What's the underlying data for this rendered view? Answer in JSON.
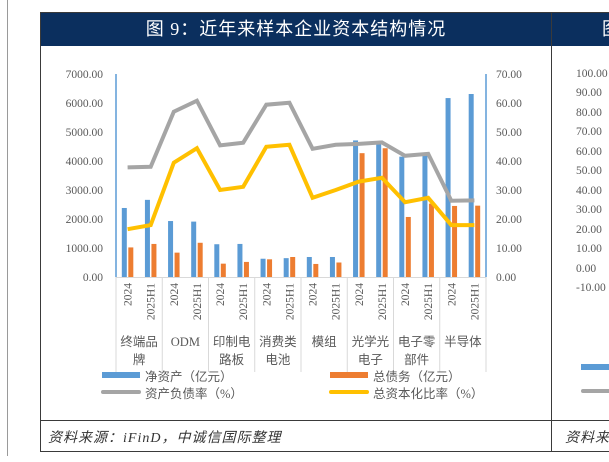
{
  "panels": [
    {
      "title": "图 9：近年来样本企业资本结构情况",
      "source": "资料来源：iFinD，中诚信国际整理",
      "legend": [
        {
          "label": "净资产（亿元）",
          "color": "#5b9bd5",
          "kind": "bar"
        },
        {
          "label": "总债务（亿元）",
          "color": "#ed7d31",
          "kind": "bar"
        },
        {
          "label": "资产负债率（%）",
          "color": "#a5a5a5",
          "kind": "line"
        },
        {
          "label": "总资本化比率（%）",
          "color": "#ffc000",
          "kind": "line"
        }
      ]
    },
    {
      "title": "图",
      "source": "资料来",
      "yaxis_ticks": [
        "100.00",
        "90.00",
        "80.00",
        "70.00",
        "60.00",
        "50.00",
        "40.00",
        "30.00",
        "20.00",
        "10.00",
        "0.00",
        "-10.00"
      ],
      "legend_colors": [
        "#5b9bd5",
        "#a5a5a5"
      ]
    }
  ],
  "colors": {
    "title_bar": "#0b2f5e",
    "net_assets": "#5b9bd5",
    "total_debt": "#ed7d31",
    "debt_ratio": "#a5a5a5",
    "cap_ratio": "#ffc000"
  },
  "chart_data": {
    "type": "bar+line",
    "title": "近年来样本企业资本结构情况",
    "categories": [
      "终端品牌",
      "ODM",
      "印制电路板",
      "消费类电池",
      "模组",
      "光学光电子",
      "电子零部件",
      "半导体"
    ],
    "category_label_lines": [
      [
        "终端品",
        "牌"
      ],
      [
        "ODM"
      ],
      [
        "印制电",
        "路板"
      ],
      [
        "消费类",
        "电池"
      ],
      [
        "模组"
      ],
      [
        "光学光",
        "电子"
      ],
      [
        "电子零",
        "部件"
      ],
      [
        "半导体"
      ]
    ],
    "periods": [
      "2024",
      "2025H1"
    ],
    "series": [
      {
        "name": "净资产（亿元）",
        "type": "bar",
        "axis": "left",
        "color": "#5b9bd5",
        "values": [
          2380,
          2660,
          1930,
          1910,
          1130,
          1140,
          630,
          650,
          690,
          690,
          4710,
          4630,
          4150,
          4200,
          6170,
          6310
        ]
      },
      {
        "name": "总债务（亿元）",
        "type": "bar",
        "axis": "left",
        "color": "#ed7d31",
        "values": [
          1020,
          1140,
          840,
          1180,
          460,
          520,
          610,
          690,
          450,
          500,
          4270,
          4440,
          2070,
          2530,
          2450,
          2460
        ]
      },
      {
        "name": "资产负债率（%）",
        "type": "line",
        "axis": "right",
        "color": "#a5a5a5",
        "values": [
          37.8,
          38.0,
          57.0,
          60.8,
          45.4,
          46.3,
          59.4,
          60.1,
          44.2,
          45.6,
          45.9,
          46.4,
          41.8,
          42.5,
          26.3,
          26.4
        ]
      },
      {
        "name": "总资本化比率（%）",
        "type": "line",
        "axis": "right",
        "color": "#ffc000",
        "values": [
          16.5,
          17.9,
          39.4,
          44.4,
          30.0,
          31.1,
          44.9,
          45.6,
          27.3,
          30.0,
          32.9,
          34.2,
          25.8,
          27.3,
          17.9,
          17.9
        ]
      }
    ],
    "left_axis": {
      "label": "",
      "ylim": [
        0,
        7000
      ],
      "ticks": [
        "0.00",
        "1000.00",
        "2000.00",
        "3000.00",
        "4000.00",
        "5000.00",
        "6000.00",
        "7000.00"
      ]
    },
    "right_axis": {
      "label": "",
      "ylim": [
        0,
        70
      ],
      "ticks": [
        "0.00",
        "10.00",
        "20.00",
        "30.00",
        "40.00",
        "50.00",
        "60.00",
        "70.00"
      ]
    },
    "xlabel": "",
    "grid": false,
    "legend_position": "bottom"
  }
}
